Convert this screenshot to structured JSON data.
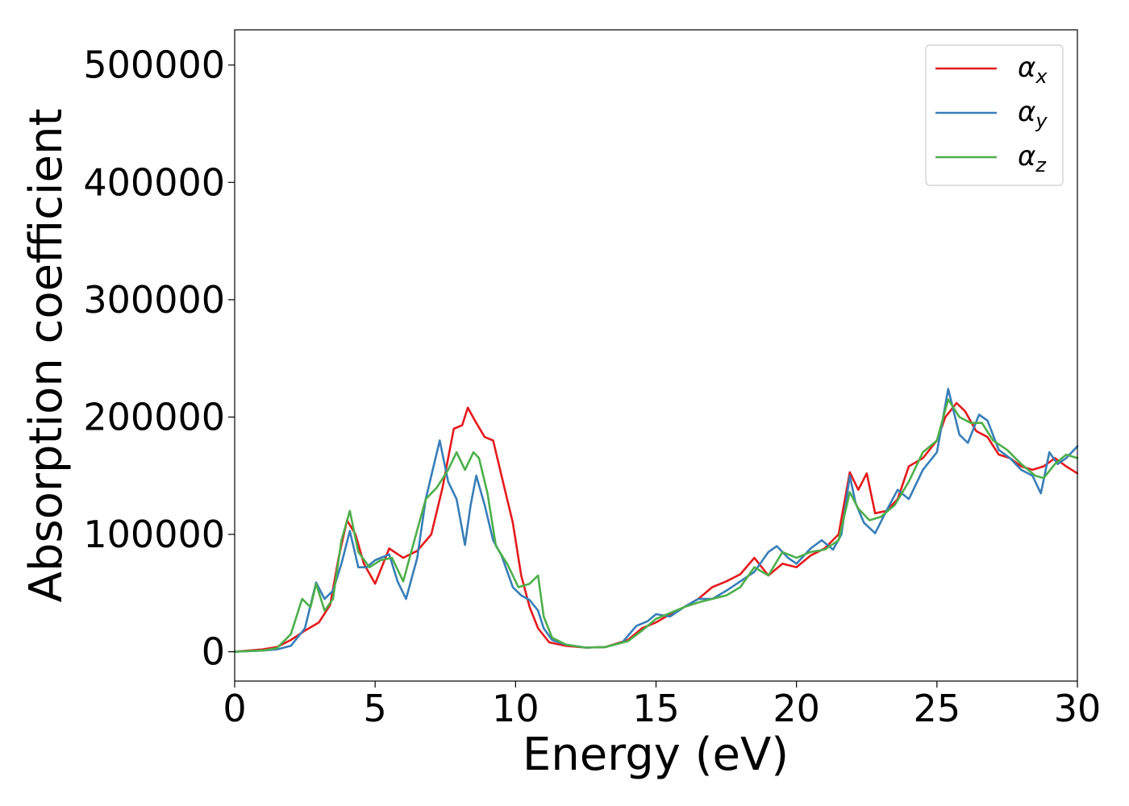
{
  "chart_data": {
    "type": "line",
    "xlabel": "Energy (eV)",
    "ylabel": "Absorption coefficient",
    "xlim": [
      0,
      30
    ],
    "ylim": [
      -25000,
      530000
    ],
    "xticks": [
      0,
      5,
      10,
      15,
      20,
      25,
      30
    ],
    "yticks": [
      0,
      100000,
      200000,
      300000,
      400000,
      500000
    ],
    "grid": false,
    "legend_position": "top-right",
    "series": [
      {
        "name": "αx",
        "name_base": "α",
        "name_sub": "x",
        "color": "#e41a1c",
        "x": [
          0,
          1,
          1.5,
          2,
          2.5,
          3,
          3.4,
          3.7,
          4,
          4.3,
          4.6,
          5,
          5.5,
          6,
          6.5,
          7,
          7.4,
          7.8,
          8.1,
          8.3,
          8.6,
          8.9,
          9.2,
          9.5,
          9.9,
          10.2,
          10.5,
          10.8,
          11.2,
          11.8,
          12.5,
          13.2,
          14,
          14.5,
          15,
          15.5,
          16,
          16.5,
          17,
          17.5,
          18,
          18.5,
          19,
          19.5,
          20,
          20.5,
          21,
          21.5,
          21.9,
          22.2,
          22.5,
          22.8,
          23.2,
          23.6,
          24,
          24.5,
          25,
          25.3,
          25.7,
          26,
          26.4,
          26.8,
          27.2,
          27.6,
          28,
          28.4,
          28.8,
          29.2,
          29.6,
          30
        ],
        "y": [
          0,
          2000,
          4000,
          10000,
          18000,
          25000,
          40000,
          80000,
          112000,
          100000,
          75000,
          58000,
          88000,
          80000,
          86000,
          100000,
          140000,
          190000,
          193000,
          208000,
          195000,
          183000,
          180000,
          150000,
          110000,
          65000,
          38000,
          20000,
          8000,
          5000,
          3500,
          4000,
          10000,
          20000,
          25000,
          32000,
          38000,
          45000,
          55000,
          60000,
          66000,
          80000,
          65000,
          75000,
          72000,
          82000,
          88000,
          100000,
          153000,
          138000,
          152000,
          118000,
          120000,
          130000,
          158000,
          165000,
          180000,
          200000,
          212000,
          205000,
          188000,
          183000,
          168000,
          165000,
          158000,
          155000,
          158000,
          165000,
          158000,
          152000
        ]
      },
      {
        "name": "αy",
        "name_base": "α",
        "name_sub": "y",
        "color": "#377eb8",
        "x": [
          0,
          1,
          1.5,
          2,
          2.5,
          2.9,
          3.2,
          3.5,
          3.8,
          4.1,
          4.4,
          4.7,
          5,
          5.5,
          5.8,
          6.1,
          6.5,
          6.8,
          7.1,
          7.3,
          7.6,
          7.9,
          8.2,
          8.4,
          8.6,
          8.9,
          9.2,
          9.5,
          9.9,
          10.2,
          10.5,
          10.8,
          11,
          11.3,
          11.8,
          12.5,
          13.2,
          13.8,
          14.3,
          14.7,
          15,
          15.5,
          16,
          16.5,
          17,
          17.5,
          18,
          18.5,
          19,
          19.3,
          19.7,
          20,
          20.5,
          20.9,
          21.3,
          21.6,
          21.9,
          22.1,
          22.4,
          22.8,
          23.2,
          23.6,
          24,
          24.5,
          25,
          25.4,
          25.8,
          26.1,
          26.5,
          26.8,
          27.2,
          27.6,
          28,
          28.4,
          28.7,
          29,
          29.3,
          29.6,
          30
        ],
        "y": [
          0,
          1000,
          2000,
          5000,
          20000,
          59000,
          45000,
          52000,
          75000,
          103000,
          72000,
          72000,
          78000,
          83000,
          60000,
          45000,
          80000,
          130000,
          160000,
          180000,
          145000,
          130000,
          91000,
          125000,
          150000,
          125000,
          95000,
          82000,
          55000,
          48000,
          44000,
          35000,
          20000,
          10000,
          6000,
          3500,
          4000,
          8000,
          22000,
          26000,
          32000,
          30000,
          38000,
          45000,
          45000,
          52000,
          60000,
          68000,
          85000,
          90000,
          80000,
          75000,
          88000,
          95000,
          87000,
          100000,
          150000,
          127000,
          110000,
          101000,
          120000,
          138000,
          130000,
          155000,
          170000,
          224000,
          185000,
          178000,
          202000,
          197000,
          172000,
          165000,
          155000,
          150000,
          135000,
          170000,
          160000,
          165000,
          175000
        ]
      },
      {
        "name": "αz",
        "name_base": "α",
        "name_sub": "z",
        "color": "#4daf4a",
        "x": [
          0,
          1,
          1.5,
          2,
          2.4,
          2.7,
          2.9,
          3.2,
          3.5,
          3.8,
          4.1,
          4.4,
          4.8,
          5.2,
          5.6,
          6,
          6.4,
          6.8,
          7.2,
          7.6,
          7.9,
          8.2,
          8.5,
          8.7,
          9,
          9.3,
          9.7,
          10.1,
          10.5,
          10.8,
          11,
          11.3,
          11.8,
          12.5,
          13.2,
          14,
          14.5,
          15,
          15.5,
          16,
          16.5,
          17,
          17.5,
          18,
          18.5,
          19,
          19.5,
          20,
          20.5,
          21,
          21.5,
          21.9,
          22.2,
          22.6,
          23,
          23.5,
          24,
          24.5,
          25,
          25.4,
          25.8,
          26.2,
          26.6,
          27,
          27.5,
          28,
          28.5,
          28.8,
          29.2,
          29.6,
          30
        ],
        "y": [
          0,
          1000,
          3000,
          15000,
          45000,
          38000,
          58000,
          35000,
          45000,
          95000,
          120000,
          85000,
          72000,
          78000,
          80000,
          60000,
          95000,
          130000,
          140000,
          155000,
          170000,
          155000,
          170000,
          165000,
          135000,
          90000,
          75000,
          55000,
          58000,
          65000,
          30000,
          12000,
          6000,
          3500,
          4000,
          9000,
          18000,
          28000,
          33000,
          38000,
          42000,
          45000,
          48000,
          55000,
          72000,
          65000,
          85000,
          80000,
          85000,
          87000,
          95000,
          136000,
          122000,
          112000,
          115000,
          125000,
          145000,
          170000,
          180000,
          215000,
          200000,
          195000,
          195000,
          180000,
          172000,
          160000,
          150000,
          148000,
          160000,
          168000,
          165000
        ]
      }
    ]
  }
}
